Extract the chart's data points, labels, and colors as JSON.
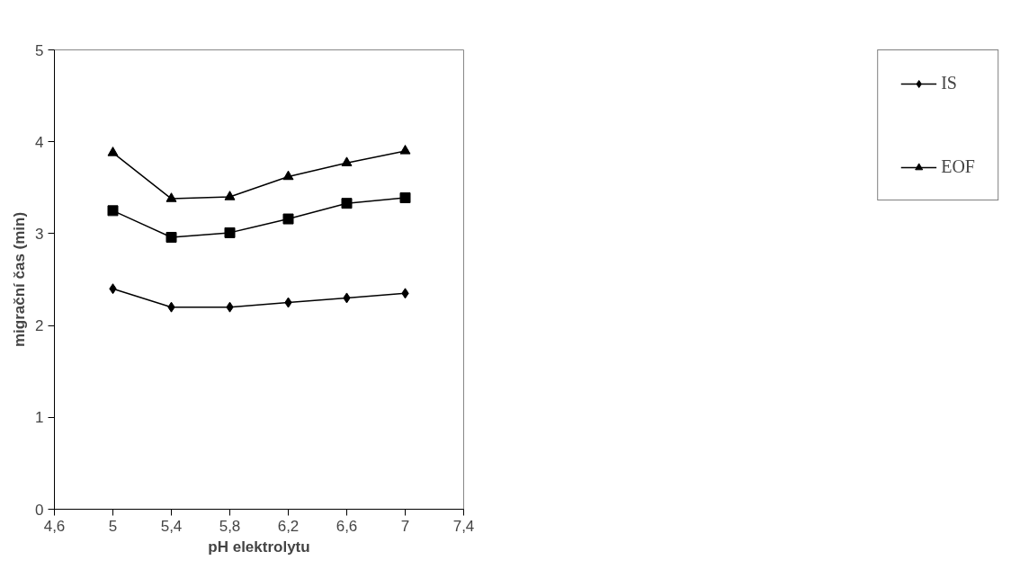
{
  "chart_data": {
    "type": "line",
    "xlabel": "pH elektrolytu",
    "ylabel": "migrační čas (min)",
    "x": [
      5,
      5.4,
      5.8,
      6.2,
      6.6,
      7
    ],
    "xlim": [
      4.6,
      7.4
    ],
    "xticks": [
      {
        "value": 4.6,
        "label": "4,6"
      },
      {
        "value": 5,
        "label": "5"
      },
      {
        "value": 5.4,
        "label": "5,4"
      },
      {
        "value": 5.8,
        "label": "5,8"
      },
      {
        "value": 6.2,
        "label": "6,2"
      },
      {
        "value": 6.6,
        "label": "6,6"
      },
      {
        "value": 7,
        "label": "7"
      },
      {
        "value": 7.4,
        "label": "7,4"
      }
    ],
    "ylim": [
      0,
      5
    ],
    "yticks": [
      0,
      1,
      2,
      3,
      4,
      5
    ],
    "grid": false,
    "legend": "right",
    "series": [
      {
        "name": "IS",
        "color": "#000000",
        "marker": "diamond",
        "values": [
          2.4,
          2.2,
          2.2,
          2.25,
          2.3,
          2.35
        ]
      },
      {
        "color": "#000000",
        "marker": "square",
        "values": [
          3.25,
          2.96,
          3.01,
          3.16,
          3.33,
          3.39
        ]
      },
      {
        "name": "EOF",
        "color": "#000000",
        "marker": "triangle",
        "values": [
          3.88,
          3.38,
          3.4,
          3.62,
          3.77,
          3.9
        ]
      }
    ]
  }
}
